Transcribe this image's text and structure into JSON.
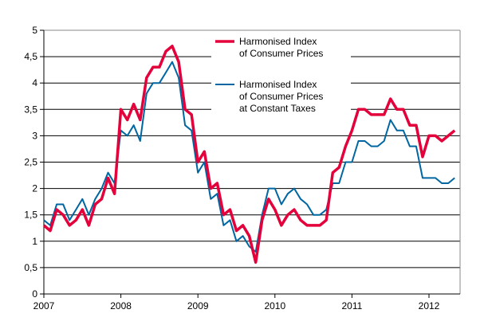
{
  "chart_data": {
    "type": "line",
    "title": "",
    "xlabel": "",
    "ylabel": "",
    "ylim": [
      0,
      5
    ],
    "grid": true,
    "legend_placement": "top-center",
    "x_start": "2007-01",
    "x_frequency": "monthly",
    "x_tick_labels": [
      "2007",
      "2008",
      "2009",
      "2010",
      "2011",
      "2012"
    ],
    "y_tick_labels": [
      "0",
      "0,5",
      "1",
      "1,5",
      "2",
      "2,5",
      "3",
      "3,5",
      "4",
      "4,5",
      "5"
    ],
    "series": [
      {
        "name": "Harmonised Index of Consumer Prices",
        "legend_lines": [
          "Harmonised Index",
          "of Consumer Prices"
        ],
        "color": "#e4003a",
        "values": [
          1.3,
          1.2,
          1.6,
          1.5,
          1.3,
          1.4,
          1.6,
          1.3,
          1.7,
          1.8,
          2.2,
          1.9,
          3.5,
          3.3,
          3.6,
          3.3,
          4.1,
          4.3,
          4.3,
          4.6,
          4.7,
          4.4,
          3.5,
          3.4,
          2.5,
          2.7,
          2.0,
          2.1,
          1.5,
          1.6,
          1.2,
          1.3,
          1.1,
          0.6,
          1.4,
          1.8,
          1.6,
          1.3,
          1.5,
          1.6,
          1.4,
          1.3,
          1.3,
          1.3,
          1.4,
          2.3,
          2.4,
          2.8,
          3.1,
          3.5,
          3.5,
          3.4,
          3.4,
          3.4,
          3.7,
          3.5,
          3.5,
          3.2,
          3.2,
          2.6,
          3.0,
          3.0,
          2.9,
          3.0,
          3.1
        ]
      },
      {
        "name": "Harmonised Index of Consumer Prices at Constant Taxes",
        "legend_lines": [
          "Harmonised Index",
          "of Consumer Prices",
          "at Constant Taxes"
        ],
        "color": "#0066a1",
        "values": [
          1.4,
          1.3,
          1.7,
          1.7,
          1.4,
          1.6,
          1.8,
          1.5,
          1.8,
          2.0,
          2.3,
          2.1,
          3.1,
          3.0,
          3.2,
          2.9,
          3.8,
          4.0,
          4.0,
          4.2,
          4.4,
          4.1,
          3.2,
          3.1,
          2.3,
          2.5,
          1.8,
          1.9,
          1.3,
          1.4,
          1.0,
          1.1,
          0.9,
          0.8,
          1.5,
          2.0,
          2.0,
          1.7,
          1.9,
          2.0,
          1.8,
          1.7,
          1.5,
          1.5,
          1.6,
          2.1,
          2.1,
          2.5,
          2.5,
          2.9,
          2.9,
          2.8,
          2.8,
          2.9,
          3.3,
          3.1,
          3.1,
          2.8,
          2.8,
          2.2,
          2.2,
          2.2,
          2.1,
          2.1,
          2.2
        ]
      }
    ]
  }
}
